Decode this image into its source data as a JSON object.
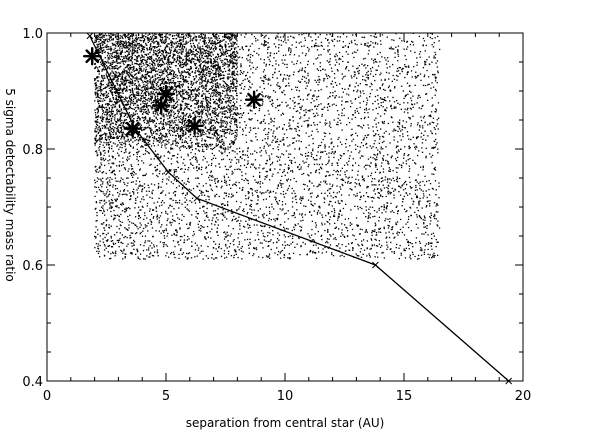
{
  "chart_data": {
    "type": "scatter",
    "title": "",
    "xlabel": "separation from central star (AU)",
    "ylabel": "5 sigma detectability mass ratio",
    "xlim": [
      0,
      20
    ],
    "ylim": [
      0.4,
      1.0
    ],
    "xticks": [
      0,
      5,
      10,
      15,
      20
    ],
    "yticks": [
      0.4,
      0.6,
      0.8,
      1.0
    ],
    "xtick_labels": [
      "0",
      "5",
      "10",
      "15",
      "20"
    ],
    "ytick_labels": [
      "0.4",
      "0.6",
      "0.8",
      "1.0"
    ],
    "grid": false,
    "legend": "none",
    "colors": {
      "points": "#000000",
      "curve": "#000000",
      "axes": "#000000"
    },
    "series": [
      {
        "kind": "scatter-cloud",
        "marker": "dot",
        "x_range": [
          2,
          16.5
        ],
        "y_range": [
          0.61,
          1.0
        ],
        "dense_region": {
          "x_range": [
            2,
            8
          ],
          "y_range": [
            0.8,
            1.0
          ]
        }
      },
      {
        "kind": "highlighted",
        "marker": "star",
        "x": [
          1.9,
          3.6,
          4.8,
          5.0,
          6.2,
          8.7
        ],
        "y": [
          0.96,
          0.835,
          0.875,
          0.895,
          0.84,
          0.885
        ]
      },
      {
        "kind": "line",
        "x": [
          1.8,
          3.7,
          5.1,
          6.3,
          13.8,
          19.4
        ],
        "y": [
          0.995,
          0.835,
          0.76,
          0.715,
          0.6,
          0.4
        ]
      }
    ]
  }
}
